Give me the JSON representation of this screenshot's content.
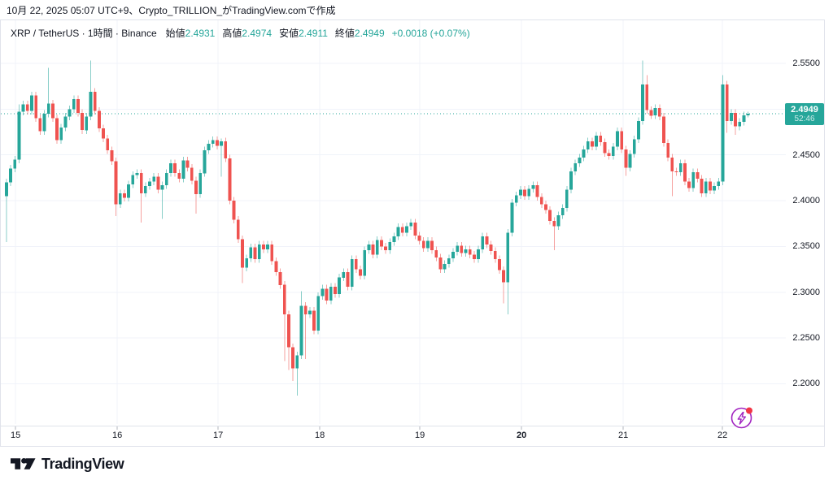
{
  "attribution": "10月 22, 2025 05:07 UTC+9、Crypto_TRILLION_がTradingView.comで作成",
  "legend": {
    "title": "XRP / TetherUS · 1時間 · Binance",
    "open_label": "始値",
    "open": "2.4931",
    "high_label": "高値",
    "high": "2.4974",
    "low_label": "安値",
    "low": "2.4911",
    "close_label": "終値",
    "close": "2.4949",
    "change": "+0.0018 (+0.07%)"
  },
  "price_label": {
    "value": "2.4949",
    "countdown": "52:46"
  },
  "logo_text": "TradingView",
  "colors": {
    "up": "#26A69A",
    "down": "#EF5350",
    "grid": "#F0F3FA",
    "border": "#E0E3EB",
    "text": "#131722",
    "spark": "#A226C1",
    "alert_dot": "#F23645"
  },
  "chart_data": {
    "type": "candlestick",
    "title": "XRP / TetherUS · 1時間 · Binance",
    "timeframe": "1時間",
    "current_bar": {
      "open": 2.4931,
      "high": 2.4974,
      "low": 2.4911,
      "close": 2.4949,
      "change": "+0.0018 (+0.07%)"
    },
    "price_line": 2.4949,
    "ylim": [
      2.133,
      2.597
    ],
    "y_ticks": [
      {
        "label": "2.5500",
        "value": 2.55
      },
      {
        "label": "2.5000",
        "value": 2.5
      },
      {
        "label": "2.4500",
        "value": 2.45
      },
      {
        "label": "2.4000",
        "value": 2.4
      },
      {
        "label": "2.3500",
        "value": 2.35
      },
      {
        "label": "2.3000",
        "value": 2.3
      },
      {
        "label": "2.2500",
        "value": 2.25
      },
      {
        "label": "2.2000",
        "value": 2.2
      }
    ],
    "x_ticks": [
      {
        "label": "15",
        "at": 2.14
      },
      {
        "label": "16",
        "at": 26.27
      },
      {
        "label": "17",
        "at": 50.21
      },
      {
        "label": "18",
        "at": 74.34
      },
      {
        "label": "19",
        "at": 98.09
      },
      {
        "label": "20",
        "at": 122.22,
        "bold": true
      },
      {
        "label": "21",
        "at": 146.35
      },
      {
        "label": "22",
        "at": 169.9
      }
    ],
    "open_rule": "previous_close",
    "first_open": 2.405,
    "default_wick": 0.004,
    "closes": [
      2.42,
      2.435,
      2.445,
      2.497,
      2.505,
      2.498,
      2.515,
      2.49,
      2.476,
      2.495,
      2.506,
      2.49,
      2.466,
      2.48,
      2.492,
      2.5,
      2.511,
      2.496,
      2.477,
      2.492,
      2.519,
      2.498,
      2.479,
      2.468,
      2.455,
      2.443,
      2.396,
      2.408,
      2.403,
      2.418,
      2.428,
      2.43,
      2.408,
      2.416,
      2.421,
      2.426,
      2.412,
      2.417,
      2.43,
      2.441,
      2.43,
      2.424,
      2.444,
      2.436,
      2.422,
      2.407,
      2.43,
      2.455,
      2.462,
      2.466,
      2.46,
      2.465,
      2.446,
      2.4,
      2.379,
      2.358,
      2.327,
      2.337,
      2.349,
      2.336,
      2.352,
      2.347,
      2.352,
      2.334,
      2.322,
      2.308,
      2.276,
      2.24,
      2.217,
      2.231,
      2.285,
      2.276,
      2.28,
      2.258,
      2.296,
      2.304,
      2.291,
      2.306,
      2.298,
      2.316,
      2.322,
      2.306,
      2.336,
      2.325,
      2.318,
      2.346,
      2.352,
      2.341,
      2.357,
      2.35,
      2.346,
      2.355,
      2.361,
      2.371,
      2.365,
      2.372,
      2.376,
      2.362,
      2.356,
      2.348,
      2.356,
      2.346,
      2.338,
      2.325,
      2.331,
      2.337,
      2.344,
      2.351,
      2.343,
      2.347,
      2.341,
      2.336,
      2.347,
      2.361,
      2.352,
      2.345,
      2.336,
      2.324,
      2.311,
      2.365,
      2.398,
      2.406,
      2.412,
      2.405,
      2.413,
      2.417,
      2.404,
      2.396,
      2.39,
      2.378,
      2.372,
      2.384,
      2.392,
      2.412,
      2.432,
      2.441,
      2.447,
      2.456,
      2.465,
      2.459,
      2.471,
      2.464,
      2.452,
      2.449,
      2.459,
      2.476,
      2.456,
      2.436,
      2.451,
      2.467,
      2.487,
      2.527,
      2.499,
      2.493,
      2.501,
      2.492,
      2.463,
      2.447,
      2.432,
      2.431,
      2.441,
      2.421,
      2.414,
      2.431,
      2.424,
      2.408,
      2.421,
      2.411,
      2.416,
      2.421,
      2.527,
      2.487,
      2.496,
      2.481,
      2.486,
      2.4931,
      2.4949
    ],
    "wick_overrides": {
      "0": {
        "low": 2.355
      },
      "3": {
        "high": 2.505
      },
      "10": {
        "high": 2.545
      },
      "20": {
        "high": 2.553
      },
      "26": {
        "low": 2.383
      },
      "32": {
        "low": 2.376
      },
      "37": {
        "low": 2.38
      },
      "45": {
        "low": 2.386
      },
      "51": {
        "high": 2.468,
        "low": 2.426
      },
      "56": {
        "low": 2.31
      },
      "66": {
        "low": 2.225
      },
      "67": {
        "low": 2.215
      },
      "68": {
        "low": 2.203
      },
      "69": {
        "low": 2.187
      },
      "70": {
        "high": 2.301
      },
      "71": {
        "low": 2.227
      },
      "118": {
        "low": 2.288
      },
      "119": {
        "high": 2.369,
        "low": 2.276
      },
      "130": {
        "low": 2.346
      },
      "147": {
        "low": 2.427
      },
      "151": {
        "high": 2.553
      },
      "152": {
        "high": 2.537
      },
      "158": {
        "low": 2.405
      },
      "170": {
        "high": 2.537
      },
      "171": {
        "low": 2.474
      },
      "173": {
        "low": 2.472
      },
      "176": {
        "high": 2.4974,
        "low": 2.4911
      }
    }
  }
}
